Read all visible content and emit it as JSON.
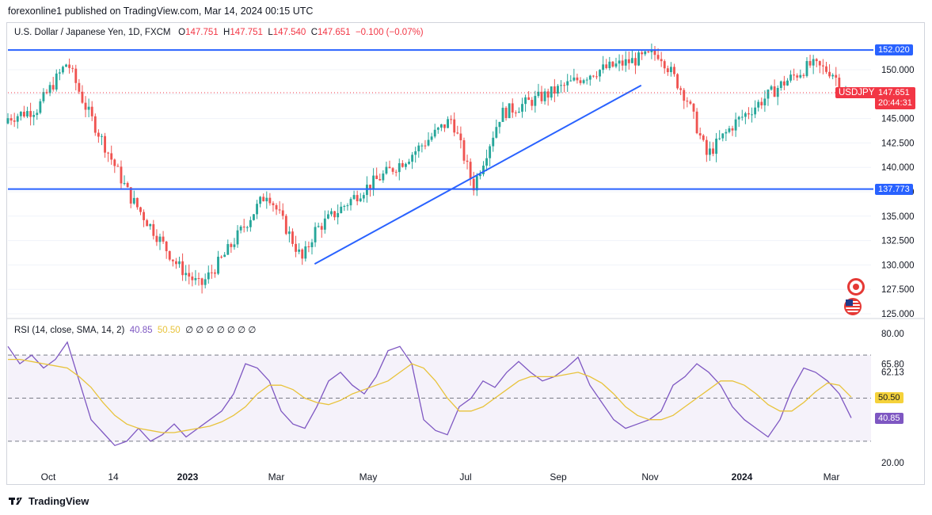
{
  "header": {
    "published": "forexonline1 published on TradingView.com, Mar 14, 2024 00:15 UTC"
  },
  "legend": {
    "symbol": "U.S. Dollar / Japanese Yen, 1D, FXCM",
    "open_label": "O",
    "open": "147.751",
    "high_label": "H",
    "high": "147.751",
    "low_label": "L",
    "low": "147.540",
    "close_label": "C",
    "close": "147.651",
    "change": "−0.100 (−0.07%)"
  },
  "rsi_legend": {
    "name": "RSI (14, close, SMA, 14, 2)",
    "rsi": "40.85",
    "sma": "50.50",
    "empty": "∅ ∅ ∅ ∅ ∅ ∅ ∅"
  },
  "tags": {
    "resistance": "152.020",
    "support": "137.773",
    "symbol": "USDJPY",
    "price": "147.651",
    "countdown": "20:44:31",
    "rsi_sma": "50.50",
    "rsi_value": "40.85"
  },
  "footer": {
    "brand": "TradingView"
  },
  "colors": {
    "up": "#26a69a",
    "down": "#ef5350",
    "line": "#2962ff",
    "rsi": "#7e57c2",
    "sma": "#e8c33b"
  },
  "chart_data": [
    {
      "type": "candlestick",
      "title": "U.S. Dollar / Japanese Yen, 1D, FXCM",
      "ylim": [
        125.0,
        153.0
      ],
      "y_ticks": [
        "150.000",
        "147.500",
        "145.000",
        "142.500",
        "140.000",
        "137.500",
        "135.000",
        "132.500",
        "130.000",
        "127.500",
        "125.000"
      ],
      "x_ticks": [
        "Oct",
        "14",
        "2023",
        "Mar",
        "May",
        "Jul",
        "Sep",
        "Nov",
        "2024",
        "Mar"
      ],
      "horizontal_lines": [
        152.02,
        137.773
      ],
      "trendline": {
        "from": [
          "Apr 2023",
          130.1
        ],
        "to": [
          "Nov 2023",
          148.4
        ]
      },
      "price_path": [
        [
          "Sep 2022",
          144.5
        ],
        [
          "Oct 2022",
          146.0
        ],
        [
          "Oct 21 2022",
          150.8
        ],
        [
          "Nov 2022",
          146.5
        ],
        [
          "Dec 2022",
          137.0
        ],
        [
          "Jan 2023",
          130.0
        ],
        [
          "Jan 16 2023",
          127.8
        ],
        [
          "Feb 2023",
          131.0
        ],
        [
          "Mar 2023",
          137.5
        ],
        [
          "Mar 24 2023",
          130.5
        ],
        [
          "Apr 2023",
          133.5
        ],
        [
          "May 2023",
          137.5
        ],
        [
          "Jun 2023",
          141.0
        ],
        [
          "Jun 30 2023",
          145.0
        ],
        [
          "Jul 14 2023",
          138.0
        ],
        [
          "Aug 2023",
          145.5
        ],
        [
          "Sep 2023",
          147.5
        ],
        [
          "Oct 2023",
          149.8
        ],
        [
          "Nov 13 2023",
          151.7
        ],
        [
          "Dec 2023",
          147.0
        ],
        [
          "Dec 14 2023",
          141.2
        ],
        [
          "Jan 2024",
          144.5
        ],
        [
          "Feb 2024",
          148.5
        ],
        [
          "Feb 20 2024",
          150.5
        ],
        [
          "Mar 5 2024",
          149.8
        ],
        [
          "Mar 14 2024",
          147.651
        ]
      ]
    },
    {
      "type": "line",
      "title": "RSI (14, close, SMA, 14, 2)",
      "ylim": [
        20,
        80
      ],
      "y_ticks": [
        "80.00",
        "65.80",
        "62.13",
        "20.00"
      ],
      "guide_lines": [
        70,
        50,
        30
      ],
      "series": [
        {
          "name": "RSI",
          "last": 40.85,
          "values": [
            74,
            66,
            70,
            64,
            68,
            76,
            58,
            40,
            34,
            28,
            30,
            36,
            30,
            33,
            38,
            32,
            36,
            40,
            44,
            52,
            66,
            64,
            58,
            44,
            38,
            36,
            46,
            58,
            62,
            56,
            52,
            60,
            72,
            74,
            66,
            40,
            35,
            33,
            46,
            50,
            58,
            55,
            62,
            67,
            62,
            58,
            60,
            64,
            69,
            56,
            48,
            40,
            36,
            38,
            40,
            44,
            56,
            60,
            66,
            62,
            56,
            46,
            40,
            36,
            32,
            40,
            54,
            64,
            62,
            58,
            52,
            40.85
          ]
        },
        {
          "name": "SMA",
          "last": 50.5,
          "values": [
            68,
            68,
            67,
            66,
            65,
            64,
            60,
            55,
            48,
            42,
            38,
            36,
            35,
            34,
            34,
            35,
            36,
            37,
            39,
            42,
            46,
            52,
            56,
            56,
            54,
            50,
            48,
            47,
            49,
            52,
            54,
            56,
            58,
            62,
            66,
            64,
            58,
            50,
            44,
            44,
            46,
            50,
            54,
            58,
            60,
            60,
            60,
            61,
            62,
            60,
            57,
            52,
            46,
            42,
            40,
            40,
            42,
            46,
            50,
            54,
            58,
            58,
            56,
            52,
            47,
            44,
            44,
            48,
            53,
            57,
            56,
            50.5
          ]
        }
      ]
    }
  ]
}
